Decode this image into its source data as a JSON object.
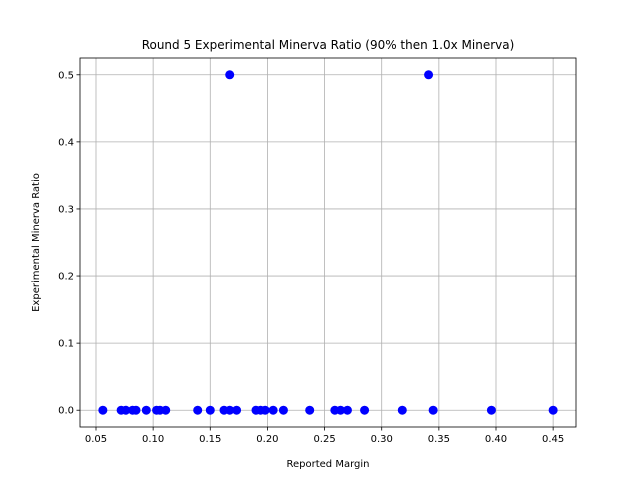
{
  "chart_data": {
    "type": "scatter",
    "title": "Round 5 Experimental Minerva Ratio (90% then 1.0x Minerva)",
    "xlabel": "Reported Margin",
    "ylabel": "Experimental Minerva Ratio",
    "xlim": [
      0.036,
      0.47
    ],
    "ylim": [
      -0.025,
      0.525
    ],
    "xticks": [
      0.05,
      0.1,
      0.15,
      0.2,
      0.25,
      0.3,
      0.35,
      0.4,
      0.45
    ],
    "xtick_labels": [
      "0.05",
      "0.10",
      "0.15",
      "0.20",
      "0.25",
      "0.30",
      "0.35",
      "0.40",
      "0.45"
    ],
    "yticks": [
      0.0,
      0.1,
      0.2,
      0.3,
      0.4,
      0.5
    ],
    "ytick_labels": [
      "0.0",
      "0.1",
      "0.2",
      "0.3",
      "0.4",
      "0.5"
    ],
    "grid": true,
    "marker_color": "#0000ff",
    "points": [
      {
        "x": 0.056,
        "y": 0.0
      },
      {
        "x": 0.072,
        "y": 0.0
      },
      {
        "x": 0.076,
        "y": 0.0
      },
      {
        "x": 0.082,
        "y": 0.0
      },
      {
        "x": 0.085,
        "y": 0.0
      },
      {
        "x": 0.094,
        "y": 0.0
      },
      {
        "x": 0.103,
        "y": 0.0
      },
      {
        "x": 0.106,
        "y": 0.0
      },
      {
        "x": 0.111,
        "y": 0.0
      },
      {
        "x": 0.139,
        "y": 0.0
      },
      {
        "x": 0.15,
        "y": 0.0
      },
      {
        "x": 0.162,
        "y": 0.0
      },
      {
        "x": 0.167,
        "y": 0.0
      },
      {
        "x": 0.173,
        "y": 0.0
      },
      {
        "x": 0.19,
        "y": 0.0
      },
      {
        "x": 0.194,
        "y": 0.0
      },
      {
        "x": 0.198,
        "y": 0.0
      },
      {
        "x": 0.205,
        "y": 0.0
      },
      {
        "x": 0.214,
        "y": 0.0
      },
      {
        "x": 0.237,
        "y": 0.0
      },
      {
        "x": 0.259,
        "y": 0.0
      },
      {
        "x": 0.264,
        "y": 0.0
      },
      {
        "x": 0.27,
        "y": 0.0
      },
      {
        "x": 0.285,
        "y": 0.0
      },
      {
        "x": 0.318,
        "y": 0.0
      },
      {
        "x": 0.345,
        "y": 0.0
      },
      {
        "x": 0.396,
        "y": 0.0
      },
      {
        "x": 0.45,
        "y": 0.0
      },
      {
        "x": 0.167,
        "y": 0.5
      },
      {
        "x": 0.341,
        "y": 0.5
      }
    ]
  }
}
